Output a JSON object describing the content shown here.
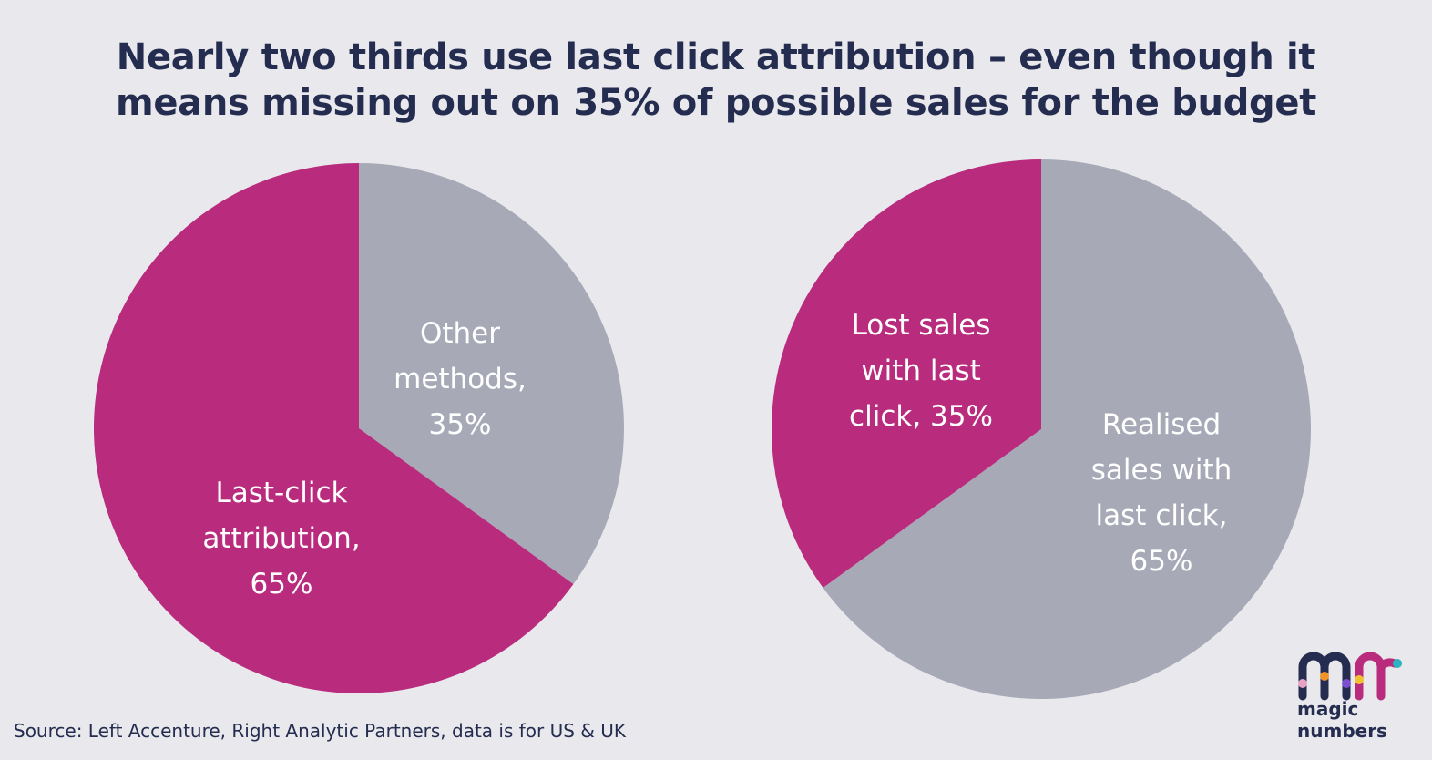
{
  "title_lines": [
    "Nearly two thirds use last click attribution – even though it",
    "means missing out on 35% of possible sales for the budget"
  ],
  "source": "Source: Left Accenture, Right Analytic Partners, data is for US & UK",
  "logo": {
    "line1": "magic",
    "line2": "numbers"
  },
  "colors": {
    "magenta": "#b82b7d",
    "grey": "#a7a9b7",
    "navy": "#242c4f",
    "background": "#e9e9ed"
  },
  "chart_data": [
    {
      "type": "pie",
      "title": "",
      "slices": [
        {
          "label_lines": [
            "Other",
            "methods,",
            "35%"
          ],
          "value": 35,
          "color": "#a7a9b7"
        },
        {
          "label_lines": [
            "Last-click",
            "attribution,",
            "65%"
          ],
          "value": 65,
          "color": "#b82b7d"
        }
      ]
    },
    {
      "type": "pie",
      "title": "",
      "slices": [
        {
          "label_lines": [
            "Realised",
            "sales with",
            "last click,",
            "65%"
          ],
          "value": 65,
          "color": "#a7a9b7"
        },
        {
          "label_lines": [
            "Lost sales",
            "with last",
            "click, 35%"
          ],
          "value": 35,
          "color": "#b82b7d"
        }
      ]
    }
  ]
}
